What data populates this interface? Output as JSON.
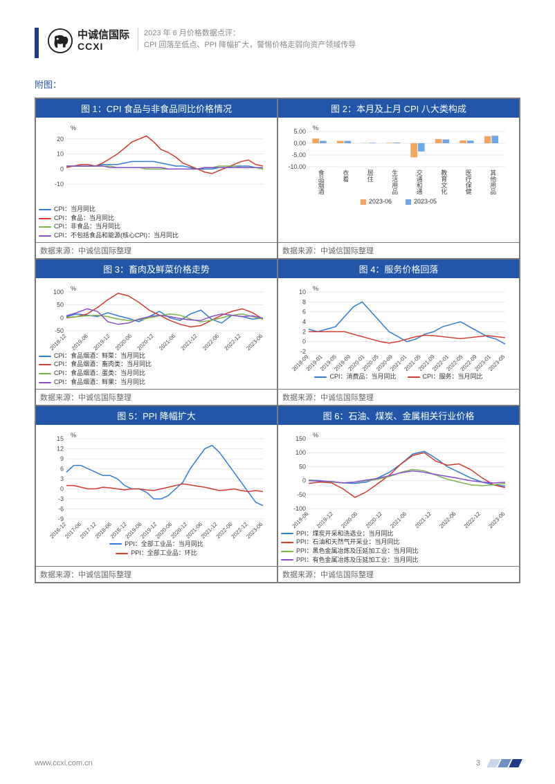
{
  "header": {
    "logo_cn": "中诚信国际",
    "logo_en": "CCXI",
    "title_line1": "2023 年 6 月价格数据点评：",
    "title_line2": "CPI 回落至低点、PPI 降幅扩大，警惕价格走弱向资产领域传导"
  },
  "section_label": "附图：",
  "source_label": "数据来源：中诚信国际整理",
  "footer": {
    "url": "www.ccxi.com.cn",
    "page_num": "3"
  },
  "charts": {
    "c1": {
      "title": "图 1：CPI 食品与非食品同比价格情况",
      "y_unit": "%",
      "ylim": [
        -10,
        25
      ],
      "yticks": [
        -10,
        0,
        10,
        20
      ],
      "x_count": 28,
      "series": [
        {
          "name": "CPI：当月同比",
          "color": "#2e7cd6",
          "values": [
            2,
            2,
            2,
            2,
            2,
            3,
            3,
            3,
            4,
            5,
            5,
            5,
            5,
            4,
            3,
            2,
            2,
            1,
            0,
            0,
            0,
            1,
            1,
            2,
            2,
            2,
            1,
            0
          ]
        },
        {
          "name": "CPI：食品：当月同比",
          "color": "#d33a2e",
          "values": [
            1,
            2,
            3,
            3,
            2,
            4,
            7,
            10,
            14,
            18,
            20,
            22,
            18,
            13,
            11,
            8,
            4,
            2,
            0,
            -2,
            -3,
            -1,
            1,
            3,
            5,
            6,
            3,
            2
          ]
        },
        {
          "name": "CPI：非食品：当月同比",
          "color": "#7ab54a",
          "values": [
            2,
            2,
            2,
            2,
            2,
            2,
            2,
            1,
            1,
            1,
            1,
            0,
            0,
            0,
            0,
            0,
            0,
            0,
            0,
            1,
            1,
            2,
            2,
            2,
            1,
            1,
            1,
            0
          ]
        },
        {
          "name": "CPI：不包括食品和能源(核心CPI)：当月同比",
          "color": "#8a4fcf",
          "values": [
            2,
            2,
            2,
            2,
            2,
            2,
            1,
            1,
            1,
            1,
            1,
            1,
            1,
            1,
            0,
            0,
            0,
            0,
            0,
            1,
            1,
            1,
            1,
            1,
            1,
            1,
            1,
            1
          ]
        }
      ]
    },
    "c2": {
      "title": "图 2：本月及上月 CPI 八大类构成",
      "y_unit": "%",
      "ylim": [
        -10,
        5
      ],
      "yticks": [
        -10,
        -5,
        0,
        5
      ],
      "categories": [
        "食品烟酒",
        "衣着",
        "居住",
        "生活用品及服务",
        "交通和通信",
        "教育文化和娱乐",
        "医疗保健",
        "其他用品和服务"
      ],
      "series": [
        {
          "name": "2023-06",
          "color": "#f5a55e",
          "values": [
            2.0,
            1.0,
            0.1,
            0.2,
            -6.0,
            1.8,
            1.2,
            3.0
          ]
        },
        {
          "name": "2023-05",
          "color": "#6fa8e8",
          "values": [
            1.0,
            1.0,
            0.2,
            0.3,
            -3.5,
            1.6,
            1.1,
            3.2
          ]
        }
      ]
    },
    "c3": {
      "title": "图 3：畜肉及鲜菜价格走势",
      "y_unit": "%",
      "ylim": [
        -50,
        100
      ],
      "yticks": [
        -50,
        0,
        50,
        100
      ],
      "xticks": [
        "2018-12",
        "2019-06",
        "2019-12",
        "2020-06",
        "2020-12",
        "2021-06",
        "2021-12",
        "2022-06",
        "2022-12",
        "2023-06"
      ],
      "series": [
        {
          "name": "CPI：食品烟酒：鲜菜：当月同比",
          "color": "#2e7cd6",
          "values": [
            5,
            15,
            10,
            5,
            20,
            8,
            -2,
            -15,
            5,
            25,
            0,
            -10,
            15,
            30,
            -5,
            -20,
            10,
            5,
            -5,
            0
          ]
        },
        {
          "name": "CPI：食品烟酒：畜肉类：当月同比",
          "color": "#d33a2e",
          "values": [
            0,
            5,
            15,
            40,
            70,
            95,
            85,
            60,
            30,
            10,
            -10,
            -25,
            -35,
            -30,
            -10,
            10,
            25,
            35,
            20,
            -5
          ]
        },
        {
          "name": "CPI：食品烟酒：蛋类：当月同比",
          "color": "#7ab54a",
          "values": [
            2,
            5,
            8,
            10,
            5,
            -5,
            -10,
            -8,
            0,
            8,
            15,
            10,
            -5,
            -15,
            -10,
            0,
            10,
            15,
            5,
            -5
          ]
        },
        {
          "name": "CPI：食品烟酒：鲜果：当月同比",
          "color": "#8a4fcf",
          "values": [
            8,
            20,
            35,
            25,
            -15,
            -25,
            -20,
            -5,
            5,
            10,
            5,
            -3,
            -8,
            -10,
            5,
            15,
            10,
            5,
            8,
            -2
          ]
        }
      ]
    },
    "c4": {
      "title": "图 4：服务价格回落",
      "y_unit": "%",
      "ylim": [
        -2,
        10
      ],
      "yticks": [
        -2,
        0,
        2,
        4,
        6,
        8,
        10
      ],
      "xticks": [
        "2018-09",
        "2019-01",
        "2019-05",
        "2019-09",
        "2020-01",
        "2020-05",
        "2020-09",
        "2021-01",
        "2021-05",
        "2021-09",
        "2022-01",
        "2022-05",
        "2022-09",
        "2023-01",
        "2023-05"
      ],
      "series": [
        {
          "name": "CPI：消费品：当月同比",
          "color": "#2e7cd6",
          "values": [
            2.5,
            2,
            2.5,
            3,
            5,
            7,
            8,
            6,
            4,
            2,
            1,
            0,
            0.5,
            1.5,
            2,
            3,
            3.5,
            4,
            3,
            2,
            1,
            0.5,
            -0.5
          ]
        },
        {
          "name": "CPI：服务：当月同比",
          "color": "#d33a2e",
          "values": [
            2,
            2,
            2,
            2,
            2,
            1.5,
            1,
            0.5,
            0,
            -0.3,
            0,
            0.5,
            1,
            1.3,
            1.2,
            1,
            0.8,
            0.6,
            0.8,
            1,
            1.2,
            1,
            0.8
          ]
        }
      ]
    },
    "c5": {
      "title": "图 5：PPI 降幅扩大",
      "y_unit": "%",
      "ylim": [
        -9,
        15
      ],
      "yticks": [
        -9,
        -6,
        -3,
        0,
        3,
        6,
        9,
        12,
        15
      ],
      "xticks": [
        "2016-12",
        "2017-06",
        "2017-12",
        "2018-06",
        "2018-12",
        "2019-06",
        "2019-12",
        "2020-06",
        "2020-12",
        "2021-06",
        "2021-12",
        "2022-06",
        "2022-12",
        "2023-06"
      ],
      "series": [
        {
          "name": "PPI：全部工业品：当月同比",
          "color": "#2e7cd6",
          "values": [
            5,
            7,
            7,
            6,
            5,
            4,
            4,
            3,
            1,
            0,
            0,
            -1,
            -3,
            -3,
            -2,
            0,
            2,
            6,
            9,
            12,
            13,
            11,
            8,
            5,
            2,
            -1,
            -4,
            -5
          ]
        },
        {
          "name": "PPI：全部工业品：环比",
          "color": "#d33a2e",
          "values": [
            1,
            1,
            0.5,
            0,
            0,
            0.5,
            0.3,
            0,
            -0.3,
            0,
            0,
            -0.3,
            -0.5,
            0,
            0.5,
            1,
            1.5,
            1.2,
            0.8,
            0.5,
            0,
            -0.5,
            -0.3,
            0,
            -0.5,
            -0.8,
            -0.5,
            -0.8
          ]
        }
      ]
    },
    "c6": {
      "title": "图 6：石油、煤炭、金属相关行业价格",
      "y_unit": "%",
      "ylim": [
        -100,
        150
      ],
      "yticks": [
        -100,
        -50,
        0,
        50,
        100,
        150
      ],
      "xticks": [
        "2019-06",
        "2019-12",
        "2020-06",
        "2020-12",
        "2021-06",
        "2021-12",
        "2022-06",
        "2022-12",
        "2023-06"
      ],
      "series": [
        {
          "name": "PPI：煤炭开采和洗选业：当月同比",
          "color": "#2e7cd6",
          "values": [
            2,
            0,
            -5,
            -8,
            -10,
            -5,
            10,
            30,
            60,
            95,
            105,
            80,
            50,
            30,
            10,
            -5,
            -15,
            -20
          ]
        },
        {
          "name": "PPI：石油和天然气开采业：当月同比",
          "color": "#d33a2e",
          "values": [
            -10,
            -5,
            -8,
            -30,
            -60,
            -40,
            -10,
            20,
            60,
            90,
            100,
            70,
            55,
            60,
            40,
            10,
            -15,
            -25
          ]
        },
        {
          "name": "PPI：黑色金属冶炼及压延加工业：当月同比",
          "color": "#7ab54a",
          "values": [
            2,
            -2,
            -5,
            -8,
            -5,
            0,
            5,
            15,
            30,
            40,
            35,
            20,
            5,
            -5,
            -15,
            -18,
            -15,
            -10
          ]
        },
        {
          "name": "PPI：有色金属冶炼及压延加工业：当月同比",
          "color": "#8a4fcf",
          "values": [
            0,
            -2,
            -3,
            -8,
            -5,
            2,
            8,
            18,
            28,
            35,
            30,
            22,
            15,
            8,
            0,
            -5,
            -8,
            -6
          ]
        }
      ]
    }
  },
  "colors": {
    "brand": "#1e3a8a",
    "title_bar": "#2256a8",
    "grid": "#d0d0d0",
    "stripe1": "#c9d6ea",
    "stripe2": "#6d8fc7",
    "stripe3": "#1e3a8a"
  }
}
